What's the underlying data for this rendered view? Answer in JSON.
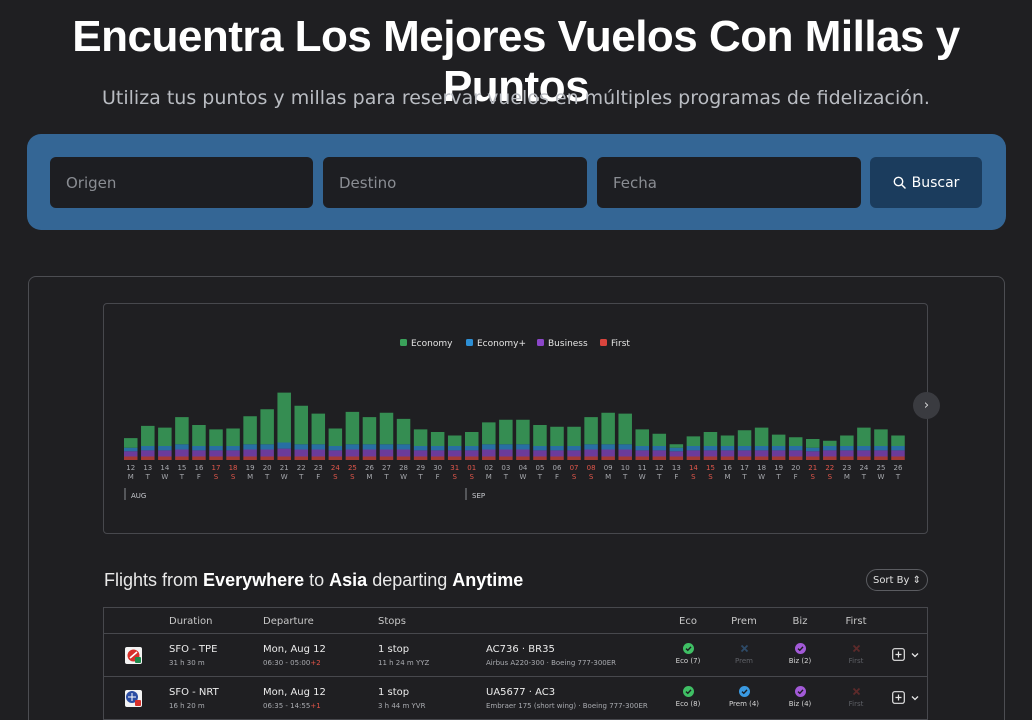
{
  "hero": {
    "title": "Encuentra Los Mejores Vuelos Con Millas y Puntos",
    "subtitle": "Utiliza tus puntos y millas para reservar vuelos en múltiples programas de fidelización."
  },
  "search": {
    "origin_placeholder": "Origen",
    "destination_placeholder": "Destino",
    "date_placeholder": "Fecha",
    "button_label": "Buscar"
  },
  "colors": {
    "economy": "#3aa15a",
    "premium": "#2d8fd5",
    "business": "#8b46c9",
    "first": "#d9443d",
    "panel": "#346695",
    "background": "#1f1f22"
  },
  "chart_data": {
    "type": "bar",
    "stacked": true,
    "legend_position": "top-center",
    "grid": false,
    "legend": [
      "Economy",
      "Economy+",
      "Business",
      "First"
    ],
    "months": [
      {
        "label": "AUG",
        "start_index": 0
      },
      {
        "label": "SEP",
        "start_index": 20
      }
    ],
    "categories": [
      "12",
      "13",
      "14",
      "15",
      "16",
      "17",
      "18",
      "19",
      "20",
      "21",
      "22",
      "23",
      "24",
      "25",
      "26",
      "27",
      "28",
      "29",
      "30",
      "31",
      "01",
      "02",
      "03",
      "04",
      "05",
      "06",
      "07",
      "08",
      "09",
      "10",
      "11",
      "12",
      "13",
      "14",
      "15",
      "16",
      "17",
      "18",
      "19",
      "20",
      "21",
      "22",
      "23",
      "24",
      "25",
      "26"
    ],
    "weekdays": [
      "M",
      "T",
      "W",
      "T",
      "F",
      "S",
      "S",
      "M",
      "T",
      "W",
      "T",
      "F",
      "S",
      "S",
      "M",
      "T",
      "W",
      "T",
      "F",
      "S",
      "S",
      "M",
      "T",
      "W",
      "T",
      "F",
      "S",
      "S",
      "M",
      "T",
      "W",
      "T",
      "F",
      "S",
      "S",
      "M",
      "T",
      "W",
      "T",
      "F",
      "S",
      "S",
      "M",
      "T",
      "W",
      "T"
    ],
    "series": [
      {
        "name": "Economy",
        "values": [
          11,
          23,
          21,
          31,
          24,
          19,
          20,
          32,
          40,
          57,
          44,
          35,
          20,
          37,
          31,
          36,
          29,
          19,
          16,
          12,
          16,
          25,
          28,
          28,
          24,
          22,
          22,
          31,
          36,
          35,
          19,
          14,
          4,
          11,
          16,
          12,
          18,
          21,
          13,
          10,
          10,
          6,
          12,
          21,
          19,
          12
        ]
      },
      {
        "name": "Economy+",
        "values": [
          4,
          5,
          5,
          6,
          5,
          5,
          5,
          6,
          6,
          7,
          6,
          6,
          5,
          6,
          6,
          6,
          6,
          5,
          5,
          5,
          5,
          6,
          6,
          6,
          5,
          5,
          5,
          6,
          6,
          6,
          5,
          5,
          4,
          5,
          5,
          5,
          5,
          5,
          5,
          5,
          4,
          5,
          5,
          5,
          5,
          5
        ]
      },
      {
        "name": "Business",
        "values": [
          6,
          7,
          7,
          8,
          7,
          7,
          7,
          8,
          8,
          9,
          8,
          8,
          7,
          8,
          8,
          8,
          8,
          7,
          7,
          7,
          7,
          8,
          8,
          8,
          7,
          7,
          7,
          8,
          8,
          8,
          7,
          7,
          6,
          7,
          7,
          7,
          7,
          7,
          7,
          7,
          6,
          7,
          7,
          7,
          7,
          7
        ]
      },
      {
        "name": "First",
        "values": [
          4,
          4,
          4,
          4,
          4,
          4,
          4,
          4,
          4,
          4,
          4,
          4,
          4,
          4,
          4,
          4,
          4,
          4,
          4,
          4,
          4,
          4,
          4,
          4,
          4,
          4,
          4,
          4,
          4,
          4,
          4,
          4,
          4,
          4,
          4,
          4,
          4,
          4,
          4,
          4,
          4,
          4,
          4,
          4,
          4,
          4
        ]
      }
    ]
  },
  "results": {
    "heading_prefix": "Flights from",
    "heading_origin": "Everywhere",
    "heading_to": "to",
    "heading_destination": "Asia",
    "heading_departing": "departing",
    "heading_when": "Anytime",
    "sort_label": "Sort By",
    "columns": {
      "duration": "Duration",
      "departure": "Departure",
      "stops": "Stops",
      "eco": "Eco",
      "prem": "Prem",
      "biz": "Biz",
      "first": "First"
    },
    "rows": [
      {
        "route": "SFO - TPE",
        "duration": "31 h 30 m",
        "date": "Mon, Aug 12",
        "times": "06:30 - 05:00",
        "day_offset": "+2",
        "stops": "1 stop",
        "layover": "11 h 24 m YYZ",
        "flights": "AC736 · BR35",
        "aircraft": "Airbus A220-300 · Boeing 777-300ER",
        "eco": {
          "label": "Eco (7)",
          "available": true
        },
        "prem": {
          "label": "Prem",
          "available": false
        },
        "biz": {
          "label": "Biz (2)",
          "available": true
        },
        "first": {
          "label": "First",
          "available": false
        }
      },
      {
        "route": "SFO - NRT",
        "duration": "16 h 20 m",
        "date": "Mon, Aug 12",
        "times": "06:35 - 14:55",
        "day_offset": "+1",
        "stops": "1 stop",
        "layover": "3 h 44 m YVR",
        "flights": "UA5677 · AC3",
        "aircraft": "Embraer 175 (short wing) · Boeing 777-300ER",
        "eco": {
          "label": "Eco (8)",
          "available": true
        },
        "prem": {
          "label": "Prem (4)",
          "available": true
        },
        "biz": {
          "label": "Biz (4)",
          "available": true
        },
        "first": {
          "label": "First",
          "available": false
        }
      }
    ]
  }
}
